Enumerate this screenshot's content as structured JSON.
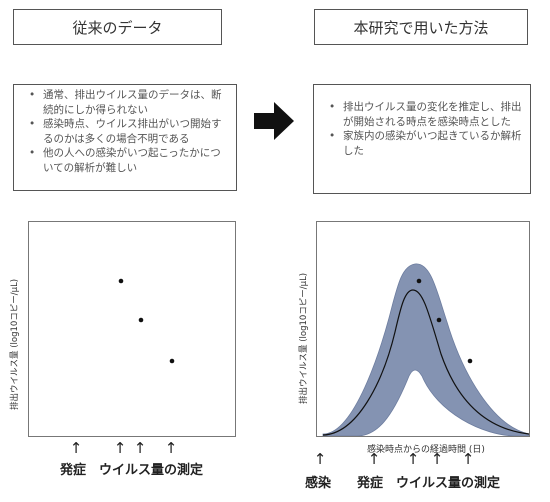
{
  "left": {
    "title": "従来のデータ",
    "notes": [
      "通常、排出ウイルス量のデータは、断続的にしか得られない",
      "感染時点、ウイルス排出がいつ開始するのかは多くの場合不明である",
      "他の人への感染がいつ起こったかについての解析が難しい"
    ],
    "y_label": "排出ウイルス量 (log10コピー/μL)",
    "labels": {
      "onset": "発症",
      "measure": "ウイルス量の測定"
    }
  },
  "right": {
    "title": "本研究で用いた方法",
    "notes": [
      "排出ウイルス量の変化を推定し、排出が開始される時点を感染時点とした",
      "家族内の感染がいつ起きているか解析した"
    ],
    "y_label": "排出ウイルス量 (log10コピー/μL)",
    "x_label": "感染時点からの経過時間 (日)",
    "labels": {
      "infection": "感染",
      "onset": "発症",
      "measure": "ウイルス量の測定"
    }
  },
  "colors": {
    "band": "#8493b2",
    "band_edge": "#6d7d9f",
    "curve": "#111111",
    "arrow": "#111111"
  }
}
